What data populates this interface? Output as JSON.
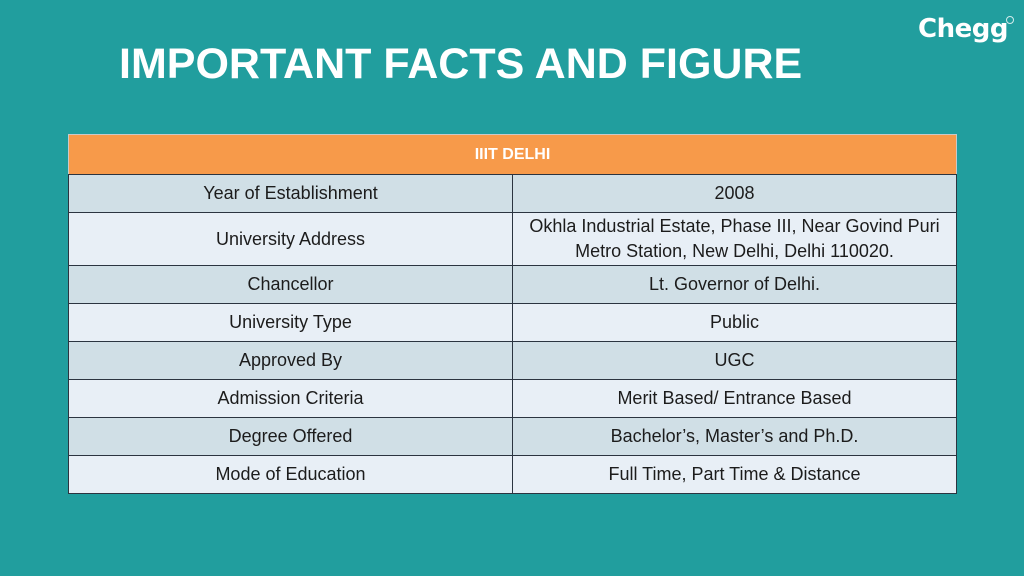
{
  "slide": {
    "title": "IMPORTANT FACTS AND FIGURE",
    "logo_text": "Chegg"
  },
  "table": {
    "header": "IIIT DELHI",
    "rows": [
      {
        "label": "Year of Establishment",
        "value": "2008"
      },
      {
        "label": "University Address",
        "value": "Okhla Industrial Estate, Phase III, Near Govind Puri Metro Station, New Delhi, Delhi 110020."
      },
      {
        "label": "Chancellor",
        "value": "Lt. Governor of Delhi."
      },
      {
        "label": "University Type",
        "value": "Public"
      },
      {
        "label": "Approved By",
        "value": "UGC"
      },
      {
        "label": "Admission Criteria",
        "value": "Merit Based/ Entrance Based"
      },
      {
        "label": "Degree Offered",
        "value": "Bachelor’s, Master’s and Ph.D."
      },
      {
        "label": "Mode of Education",
        "value": "Full Time, Part Time & Distance"
      }
    ]
  },
  "colors": {
    "background": "#219e9e",
    "header_fill": "#f79a4a",
    "row_fill_dark": "#d0dfe6",
    "row_fill_light": "#e8eff6",
    "title_text": "#ffffff"
  }
}
